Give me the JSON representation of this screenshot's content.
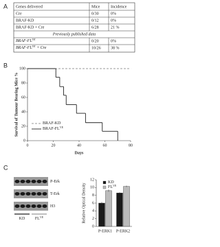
{
  "panels": {
    "a": "A",
    "b": "B",
    "c": "C"
  },
  "table": {
    "header": [
      "Genes delivered",
      "Mice",
      "Incidence"
    ],
    "rows": [
      [
        "Cre",
        "0/30",
        "0%"
      ],
      [
        "BRAF-KD",
        "0/12",
        "0%"
      ],
      [
        "BRAF-KD + Cre",
        "6/28",
        "21 %"
      ]
    ],
    "section": "Previously published data",
    "rows2": [
      [
        {
          "text": "BRAF-FL",
          "sup": "VE"
        },
        "0/20",
        "0%"
      ],
      [
        {
          "text": "BRAF-FL",
          "sup": "VE",
          "suffix": " + Cre"
        },
        "10/26",
        "38 %"
      ]
    ]
  },
  "blot": {
    "rows": [
      "P-Erk",
      "T-Erk",
      "H3"
    ],
    "lanes": [
      {
        "text": "KD"
      },
      {
        "text": "FL",
        "sup": "VE"
      }
    ]
  },
  "chart_data": [
    {
      "type": "step",
      "y_label": "Survival of Tumour Bearing Mice %",
      "x_label": "Days",
      "xlim": [
        0,
        80
      ],
      "ylim": [
        0,
        100
      ],
      "xticks": [
        0,
        20,
        40,
        60,
        80
      ],
      "yticks": [
        0,
        20,
        40,
        60,
        80,
        100
      ],
      "series": [
        {
          "name": "BRAF-KD",
          "color": "#999999",
          "dashed": true,
          "x": [
            0,
            80
          ],
          "values": [
            100,
            100
          ]
        },
        {
          "name": "BRAF-FL",
          "name_sup": "VE",
          "color": "#222222",
          "dashed": false,
          "x": [
            0,
            22,
            25,
            28,
            30,
            38,
            45,
            58,
            70
          ],
          "values": [
            100,
            88,
            75,
            63,
            50,
            38,
            25,
            13,
            0
          ]
        }
      ]
    },
    {
      "type": "bar",
      "y_label": "Relative Optical Density",
      "categories": [
        "P-ERK1",
        "P-ERK2"
      ],
      "ylim": [
        0,
        12
      ],
      "yticks": [
        0,
        2,
        4,
        6,
        8,
        10,
        12
      ],
      "series": [
        {
          "name": "KD",
          "color": "#1a1a1a",
          "values": [
            6,
            8.6
          ],
          "errors": [
            0.3,
            0.2
          ]
        },
        {
          "name": "FL",
          "name_sup": "VE",
          "color": "#bbbbbb",
          "values": [
            9.2,
            10.3
          ],
          "errors": [
            0.3,
            0.2
          ]
        }
      ]
    }
  ]
}
